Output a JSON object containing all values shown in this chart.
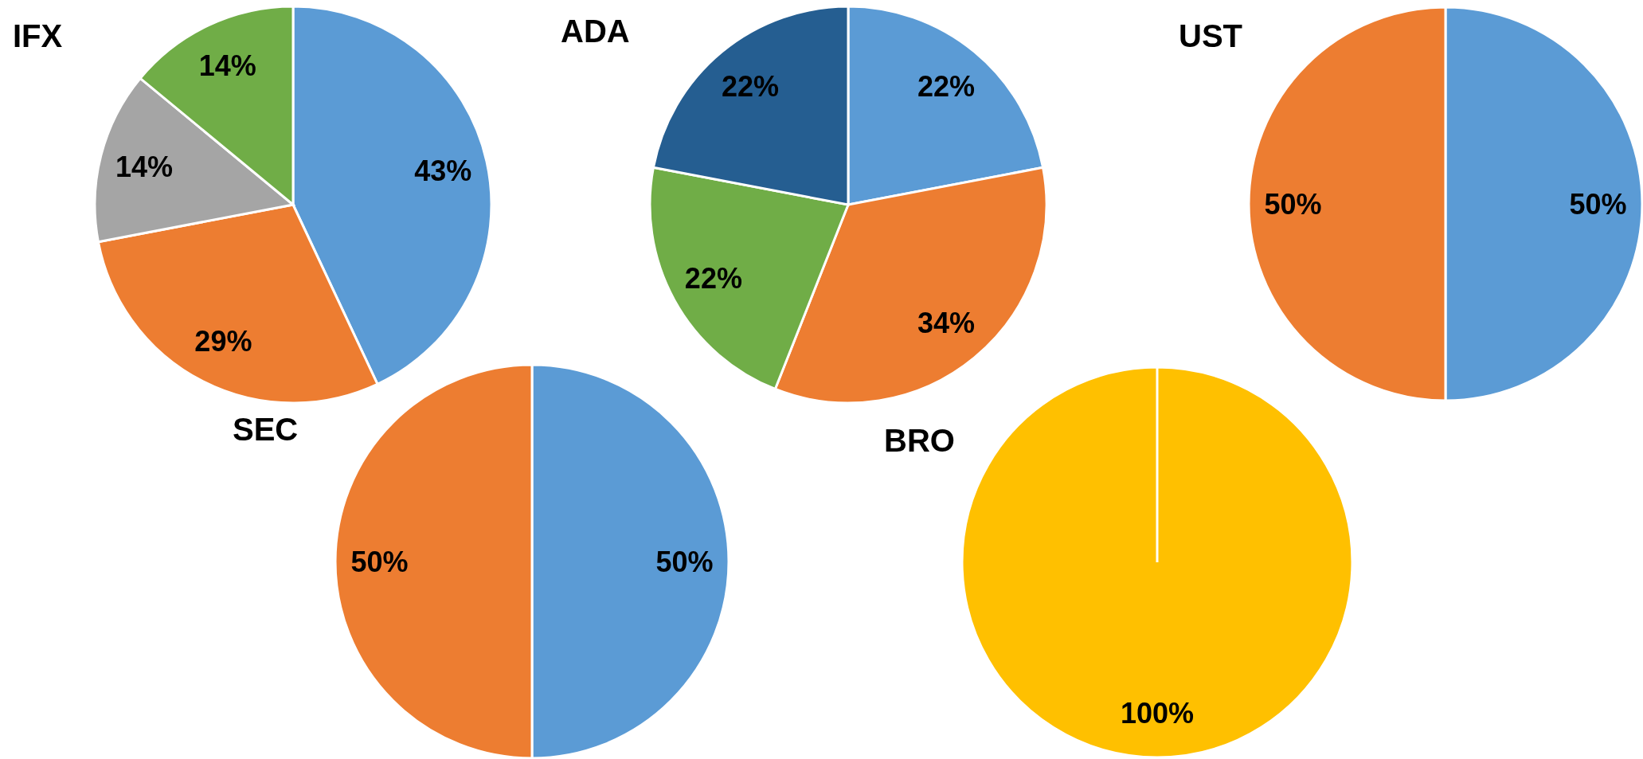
{
  "chart_data": [
    {
      "type": "pie",
      "title": "IFX",
      "categories": [
        null,
        null,
        null,
        null
      ],
      "values": [
        43,
        29,
        14,
        14
      ],
      "colors": [
        "#5b9bd5",
        "#ed7d31",
        "#a5a5a5",
        "#70ad47"
      ],
      "value_labels": [
        "43%",
        "29%",
        "14%",
        "14%"
      ]
    },
    {
      "type": "pie",
      "title": "ADA",
      "categories": [
        null,
        null,
        null,
        null
      ],
      "values": [
        22,
        34,
        22,
        22
      ],
      "colors": [
        "#5b9bd5",
        "#ed7d31",
        "#70ad47",
        "#255e91"
      ],
      "value_labels": [
        "22%",
        "34%",
        "22%",
        "22%"
      ]
    },
    {
      "type": "pie",
      "title": "UST",
      "categories": [
        null,
        null
      ],
      "values": [
        50,
        50
      ],
      "colors": [
        "#5b9bd5",
        "#ed7d31"
      ],
      "value_labels": [
        "50%",
        "50%"
      ]
    },
    {
      "type": "pie",
      "title": "SEC",
      "categories": [
        null,
        null
      ],
      "values": [
        50,
        50
      ],
      "colors": [
        "#5b9bd5",
        "#ed7d31"
      ],
      "value_labels": [
        "50%",
        "50%"
      ]
    },
    {
      "type": "pie",
      "title": "BRO",
      "categories": [
        null
      ],
      "values": [
        100
      ],
      "colors": [
        "#ffc000"
      ],
      "value_labels": [
        "100%"
      ]
    }
  ]
}
